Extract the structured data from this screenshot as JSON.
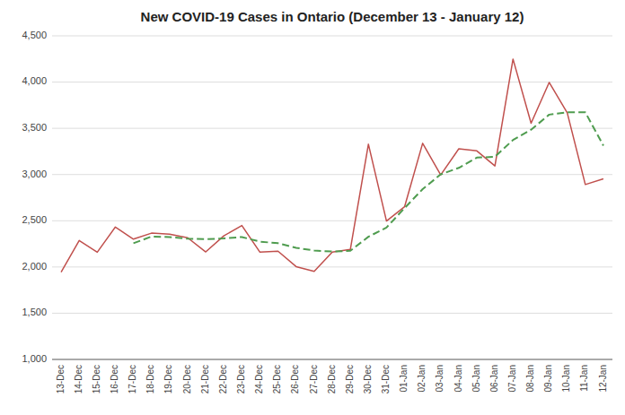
{
  "chart_data": {
    "type": "line",
    "title": "New COVID-19 Cases in Ontario (December 13 - January 12)",
    "categories": [
      "13-Dec",
      "14-Dec",
      "15-Dec",
      "16-Dec",
      "17-Dec",
      "18-Dec",
      "19-Dec",
      "20-Dec",
      "21-Dec",
      "22-Dec",
      "23-Dec",
      "24-Dec",
      "25-Dec",
      "26-Dec",
      "27-Dec",
      "28-Dec",
      "29-Dec",
      "30-Dec",
      "31-Dec",
      "01-Jan",
      "02-Jan",
      "03-Jan",
      "04-Jan",
      "05-Jan",
      "06-Jan",
      "07-Jan",
      "08-Jan",
      "09-Jan",
      "10-Jan",
      "11-Jan",
      "12-Jan"
    ],
    "series": [
      {
        "color": "#c0504d",
        "line_style": "solid",
        "values": [
          1943,
          2287,
          2160,
          2432,
          2301,
          2366,
          2354,
          2316,
          2163,
          2337,
          2448,
          2160,
          2171,
          2004,
          1953,
          2161,
          2190,
          3328,
          2497,
          2651,
          3338,
          2996,
          3278,
          3256,
          3093,
          4249,
          3555,
          3996,
          3668,
          2892,
          2953
        ]
      },
      {
        "color": "#4f9c4f",
        "line_style": "dashed",
        "values": [
          null,
          null,
          null,
          null,
          2257,
          2329,
          2323,
          2306,
          2300,
          2309,
          2324,
          2274,
          2257,
          2207,
          2178,
          2167,
          2175,
          2327,
          2427,
          2637,
          2842,
          3002,
          3072,
          3183,
          3192,
          3374,
          3485,
          3648,
          3673,
          3673,
          3313
        ]
      }
    ],
    "ylim": [
      1000,
      4500
    ],
    "yticks": [
      {
        "value": 1000,
        "label": "1,000"
      },
      {
        "value": 1500,
        "label": "1,500"
      },
      {
        "value": 2000,
        "label": "2,000"
      },
      {
        "value": 2500,
        "label": "2,500"
      },
      {
        "value": 3000,
        "label": "3,000"
      },
      {
        "value": 3500,
        "label": "3,500"
      },
      {
        "value": 4000,
        "label": "4,000"
      },
      {
        "value": 4500,
        "label": "4,500"
      }
    ],
    "grid": true
  }
}
